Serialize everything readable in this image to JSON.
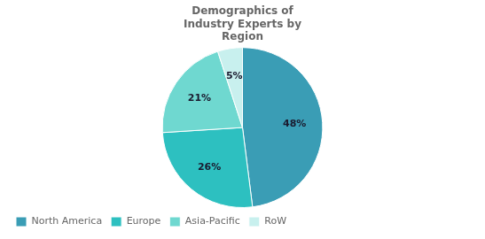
{
  "chart_data": {
    "type": "pie",
    "title": "Demographics of\nIndustry Experts by\nRegion",
    "categories": [
      "North America",
      "Europe",
      "Asia-Pacific",
      "RoW"
    ],
    "values": [
      48,
      26,
      21,
      5
    ],
    "value_labels": [
      "48%",
      "26%",
      "21%",
      "5%"
    ],
    "colors": [
      "#3a9db5",
      "#2dc0c0",
      "#6fd8d0",
      "#c8f0ee"
    ],
    "data_labels": true,
    "legend": "lower left"
  }
}
